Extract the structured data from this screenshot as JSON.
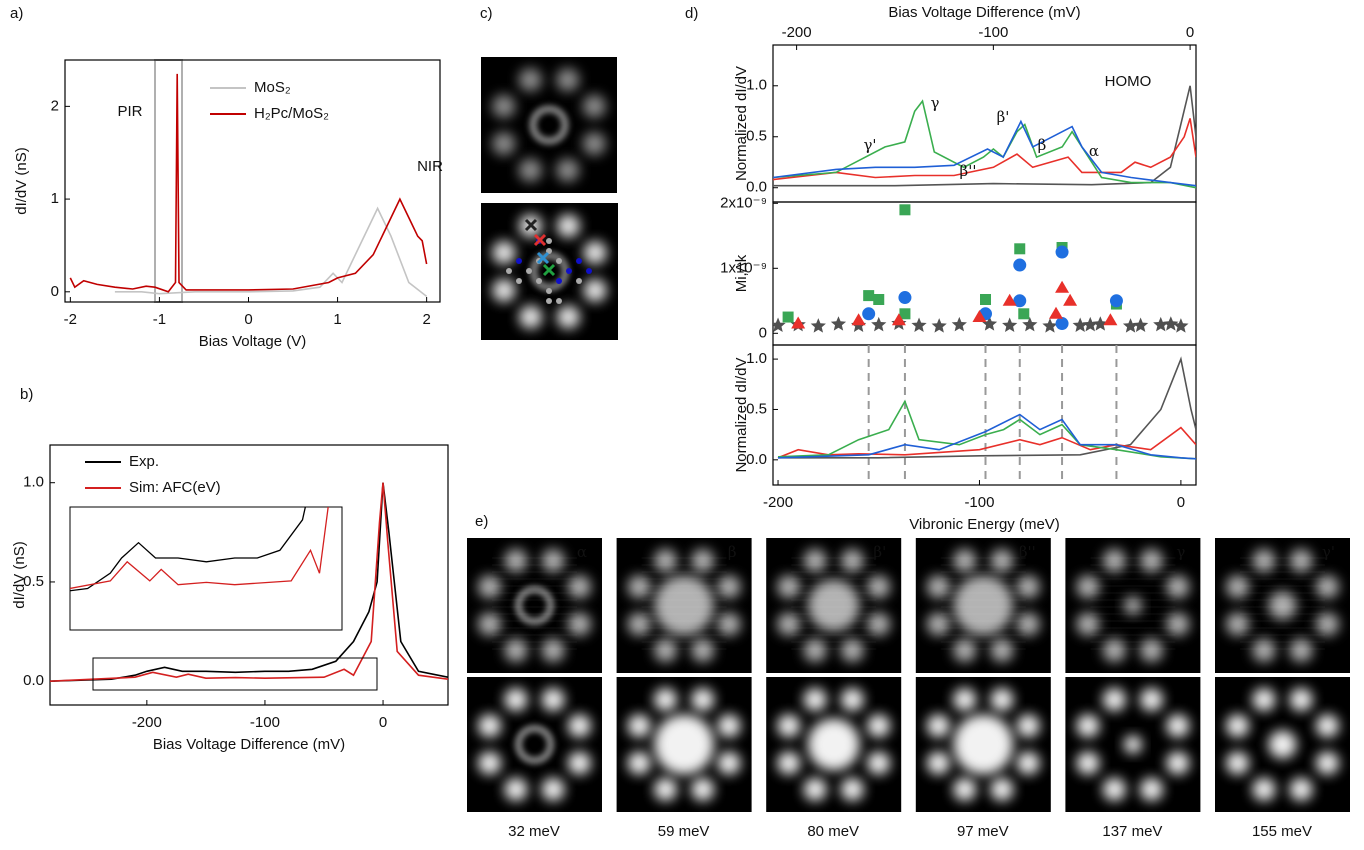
{
  "chart_data": [
    {
      "type": "line",
      "label": "a)",
      "xlabel": "Bias Voltage (V)",
      "ylabel": "dI/dV (nS)",
      "xlim": [
        -2.06,
        2.15
      ],
      "ylim": [
        -0.11,
        2.5
      ],
      "xticks": [
        -2,
        -1,
        0,
        1,
        2
      ],
      "yticks": [
        0,
        1,
        2
      ],
      "legend": true,
      "annotations": [
        "PIR",
        "NIR"
      ],
      "series": [
        {
          "name": "MoS₂",
          "color": "#c4c4c4",
          "x": [
            -1.5,
            -1.2,
            -1.0,
            -0.6,
            0,
            0.5,
            0.8,
            0.95,
            1.05,
            1.25,
            1.45,
            1.6,
            1.8,
            2.0
          ],
          "values": [
            0.0,
            0.0,
            -0.02,
            0.0,
            0.0,
            0.01,
            0.05,
            0.2,
            0.1,
            0.5,
            0.9,
            0.6,
            0.1,
            -0.05
          ]
        },
        {
          "name": "H₂Pc/MoS₂",
          "color": "#c00000",
          "x": [
            -2.0,
            -1.95,
            -1.85,
            -1.7,
            -1.5,
            -1.3,
            -1.15,
            -1.05,
            -0.9,
            -0.82,
            -0.8,
            -0.78,
            -0.7,
            -0.5,
            0,
            0.5,
            0.9,
            1.0,
            1.2,
            1.4,
            1.55,
            1.7,
            1.8,
            1.9,
            1.95,
            2.0
          ],
          "values": [
            0.15,
            0.05,
            0.12,
            0.08,
            0.05,
            0.03,
            0.06,
            0.05,
            0.0,
            0.1,
            2.35,
            0.1,
            0.02,
            0.02,
            0.02,
            0.03,
            0.1,
            0.15,
            0.2,
            0.4,
            0.7,
            1.0,
            0.8,
            0.6,
            0.55,
            0.3
          ]
        }
      ]
    },
    {
      "type": "line",
      "label": "b)",
      "xlabel": "Bias Voltage Difference (mV)",
      "ylabel": "dI/dV (nS)",
      "xlim": [
        -282,
        55
      ],
      "ylim": [
        -0.12,
        1.19
      ],
      "xticks": [
        -200,
        -100,
        0
      ],
      "yticks": [
        {
          "value": 0,
          "label": "0.0"
        },
        {
          "value": 0.5,
          "label": "0.5"
        },
        {
          "value": 1,
          "label": "1.0"
        }
      ],
      "legend": true,
      "series": [
        {
          "name": "Exp.",
          "color": "#000000",
          "x": [
            -282,
            -230,
            -210,
            -200,
            -185,
            -170,
            -150,
            -125,
            -100,
            -80,
            -60,
            -40,
            -25,
            -12,
            -5,
            0,
            5,
            15,
            30,
            55
          ],
          "values": [
            0.0,
            0.01,
            0.03,
            0.05,
            0.07,
            0.05,
            0.05,
            0.045,
            0.05,
            0.05,
            0.06,
            0.1,
            0.2,
            0.35,
            0.5,
            1.0,
            0.75,
            0.2,
            0.05,
            0.02
          ]
        },
        {
          "name": "Sim: AFC(eV)",
          "color": "#d42020",
          "x": [
            -282,
            -210,
            -195,
            -175,
            -165,
            -150,
            -125,
            -100,
            -50,
            -33,
            -25,
            -10,
            -3,
            0,
            4,
            12,
            30,
            55
          ],
          "values": [
            0.0,
            0.02,
            0.045,
            0.02,
            0.035,
            0.015,
            0.018,
            0.015,
            0.02,
            0.06,
            0.03,
            0.2,
            0.8,
            1.0,
            0.7,
            0.15,
            0.03,
            0.01
          ]
        }
      ]
    },
    {
      "type": "line",
      "label": "d)",
      "xlabel": "Bias Voltage Difference (mV)",
      "ylabel": "Normalized dI/dV",
      "xlim": [
        -212,
        3
      ],
      "ylim": [
        -0.14,
        1.4
      ],
      "xticks": [
        -200,
        -100,
        0
      ],
      "yticks": [
        {
          "value": 0,
          "label": "0.0"
        },
        {
          "value": 0.5,
          "label": "0.5"
        },
        {
          "value": 1,
          "label": "1.0"
        }
      ],
      "annotations": [
        "HOMO",
        "γ'",
        "γ",
        "β''",
        "β'",
        "β",
        "α"
      ],
      "series": [
        {
          "color": "#555555",
          "x": [
            -212,
            -150,
            -100,
            -50,
            -20,
            -10,
            -5,
            0,
            3
          ],
          "values": [
            0.02,
            0.02,
            0.04,
            0.03,
            0.05,
            0.2,
            0.6,
            1.0,
            0.5
          ]
        },
        {
          "color": "#e8302a",
          "x": [
            -212,
            -180,
            -160,
            -140,
            -120,
            -100,
            -88,
            -80,
            -62,
            -55,
            -35,
            -28,
            -20,
            -10,
            -3,
            0,
            3
          ],
          "values": [
            0.08,
            0.15,
            0.1,
            0.12,
            0.12,
            0.2,
            0.33,
            0.2,
            0.3,
            0.15,
            0.15,
            0.25,
            0.2,
            0.3,
            0.5,
            0.68,
            0.3
          ]
        },
        {
          "color": "#3aae4e",
          "x": [
            -212,
            -180,
            -165,
            -155,
            -145,
            -140,
            -136,
            -130,
            -115,
            -105,
            -100,
            -95,
            -88,
            -84,
            -78,
            -65,
            -60,
            -55,
            -45,
            -30,
            -10,
            3
          ],
          "values": [
            0.1,
            0.15,
            0.3,
            0.4,
            0.45,
            0.75,
            0.85,
            0.35,
            0.2,
            0.3,
            0.38,
            0.3,
            0.55,
            0.62,
            0.3,
            0.4,
            0.55,
            0.4,
            0.1,
            0.05,
            0.05,
            0.0
          ]
        },
        {
          "color": "#1f5fd6",
          "x": [
            -212,
            -180,
            -160,
            -140,
            -120,
            -103,
            -95,
            -86,
            -80,
            -60,
            -55,
            -45,
            -30,
            -10,
            3
          ],
          "values": [
            0.1,
            0.18,
            0.2,
            0.2,
            0.22,
            0.38,
            0.3,
            0.65,
            0.4,
            0.6,
            0.4,
            0.15,
            0.1,
            0.05,
            0.02
          ]
        }
      ]
    },
    {
      "type": "scatter",
      "ylabel": "Mi,Δk",
      "xlim": [
        -202.5,
        7.5
      ],
      "ylim": [
        -1.8e-10,
        2.02e-09
      ],
      "yticks": [
        0,
        {
          "value": 1e-09,
          "label": "1x10⁻⁹"
        },
        {
          "value": 2e-09,
          "label": "2x10⁻⁹"
        }
      ],
      "series": [
        {
          "color": "#505050",
          "marker": "star",
          "x": [
            -200,
            -190,
            -180,
            -170,
            -160,
            -150,
            -140,
            -130,
            -120,
            -110,
            -95,
            -85,
            -75,
            -65,
            -50,
            -45,
            -40,
            -25,
            -20,
            -10,
            -5,
            0
          ],
          "values": [
            1.2e-10,
            1.3e-10,
            1.1e-10,
            1.4e-10,
            1.2e-10,
            1.3e-10,
            1.5e-10,
            1.2e-10,
            1.1e-10,
            1.3e-10,
            1.4e-10,
            1.2e-10,
            1.3e-10,
            1.1e-10,
            1.2e-10,
            1.3e-10,
            1.4e-10,
            1.1e-10,
            1.2e-10,
            1.3e-10,
            1.4e-10,
            1.1e-10
          ]
        },
        {
          "color": "#3aa655",
          "marker": "square",
          "x": [
            -195,
            -155,
            -150,
            -137,
            -137,
            -97,
            -80,
            -59,
            -78,
            -32
          ],
          "values": [
            2.5e-10,
            5.8e-10,
            5.2e-10,
            1.9e-09,
            3e-10,
            5.2e-10,
            1.3e-09,
            1.32e-09,
            3e-10,
            4.5e-10
          ]
        },
        {
          "color": "#1f6fe0",
          "marker": "circle",
          "x": [
            -155,
            -137,
            -97,
            -80,
            -80,
            -59,
            -32,
            -59
          ],
          "values": [
            3e-10,
            5.5e-10,
            3e-10,
            1.05e-09,
            5e-10,
            1.25e-09,
            5e-10,
            1.5e-10
          ]
        },
        {
          "color": "#e8302a",
          "marker": "triangle",
          "x": [
            -190,
            -160,
            -140,
            -100,
            -85,
            -59,
            -55,
            -62,
            -35
          ],
          "values": [
            1.5e-10,
            2e-10,
            2e-10,
            2.5e-10,
            5e-10,
            7e-10,
            5e-10,
            3e-10,
            2e-10
          ]
        }
      ]
    },
    {
      "type": "line",
      "xlabel": "Vibronic Energy (meV)",
      "ylabel": "Normalized dI/dV",
      "xlim": [
        -202.5,
        7.5
      ],
      "ylim": [
        -0.25,
        1.14
      ],
      "xticks": [
        -200,
        -100,
        0
      ],
      "yticks": [
        {
          "value": 0,
          "label": "0.0"
        },
        {
          "value": 0.5,
          "label": "0.5"
        },
        {
          "value": 1,
          "label": "1.0"
        }
      ],
      "vlines": [
        -155,
        -137,
        -97,
        -80,
        -59,
        -32
      ],
      "series": [
        {
          "color": "#555555",
          "x": [
            -200,
            -150,
            -100,
            -50,
            -25,
            -10,
            0,
            5,
            7.5
          ],
          "values": [
            0.02,
            0.02,
            0.04,
            0.05,
            0.15,
            0.5,
            1.0,
            0.5,
            0.3
          ]
        },
        {
          "color": "#e8302a",
          "x": [
            -200,
            -190,
            -175,
            -160,
            -137,
            -100,
            -80,
            -70,
            -59,
            -45,
            -32,
            -15,
            0,
            7.5
          ],
          "values": [
            0.02,
            0.1,
            0.05,
            0.06,
            0.05,
            0.1,
            0.2,
            0.15,
            0.22,
            0.1,
            0.15,
            0.1,
            0.32,
            0.15
          ]
        },
        {
          "color": "#3aae4e",
          "x": [
            -200,
            -175,
            -160,
            -145,
            -137,
            -130,
            -110,
            -97,
            -88,
            -80,
            -70,
            -59,
            -50,
            -32,
            -10,
            7.5
          ],
          "values": [
            0.03,
            0.05,
            0.2,
            0.3,
            0.58,
            0.2,
            0.15,
            0.25,
            0.3,
            0.4,
            0.25,
            0.35,
            0.15,
            0.1,
            0.03,
            0.01
          ]
        },
        {
          "color": "#1f5fd6",
          "x": [
            -200,
            -155,
            -137,
            -120,
            -97,
            -80,
            -70,
            -59,
            -50,
            -32,
            -15,
            0,
            7.5
          ],
          "values": [
            0.02,
            0.05,
            0.15,
            0.1,
            0.28,
            0.45,
            0.3,
            0.4,
            0.15,
            0.15,
            0.05,
            0.02,
            0.01
          ]
        }
      ]
    }
  ],
  "image_panel": {
    "label": "c)"
  },
  "image_grid": {
    "label": "e)",
    "columns": [
      {
        "mode": "α",
        "energy": "32 meV"
      },
      {
        "mode": "β",
        "energy": "59 meV"
      },
      {
        "mode": "β'",
        "energy": "80 meV"
      },
      {
        "mode": "β''",
        "energy": "97 meV"
      },
      {
        "mode": "γ",
        "energy": "137 meV"
      },
      {
        "mode": "γ'",
        "energy": "155 meV"
      }
    ]
  }
}
